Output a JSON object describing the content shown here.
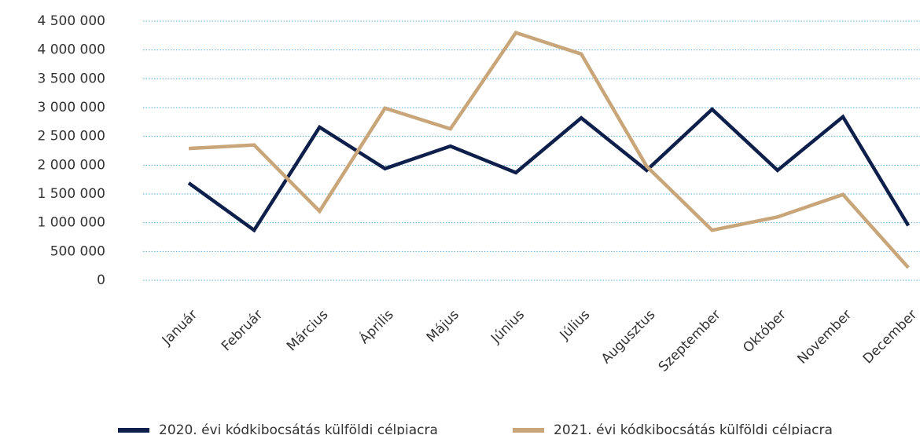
{
  "chart_data": {
    "type": "line",
    "categories": [
      "Január",
      "Február",
      "Március",
      "Április",
      "Május",
      "Június",
      "Július",
      "Augusztus",
      "Szeptember",
      "Október",
      "November",
      "December"
    ],
    "series": [
      {
        "name": "2020. évi kódkibocsátás külföldi célpiacra",
        "color": "#0d1f4a",
        "values": [
          1690000,
          870000,
          2660000,
          1940000,
          2330000,
          1870000,
          2820000,
          1910000,
          2970000,
          1910000,
          2840000,
          950000
        ]
      },
      {
        "name": "2021. évi kódkibocsátás külföldi célpiacra",
        "color": "#c9a57a",
        "values": [
          2290000,
          2350000,
          1200000,
          2990000,
          2630000,
          4300000,
          3930000,
          1980000,
          870000,
          1100000,
          1490000,
          220000
        ]
      }
    ],
    "ylim": [
      0,
      4500000
    ],
    "yticks": [
      0,
      {
        "value": 500000,
        "label": "500 000"
      },
      {
        "value": 1000000,
        "label": "1 000 000"
      },
      {
        "value": 1500000,
        "label": "1 500 000"
      },
      {
        "value": 2000000,
        "label": "2 000 000"
      },
      {
        "value": 2500000,
        "label": "2 500 000"
      },
      {
        "value": 3000000,
        "label": "3 000 000"
      },
      {
        "value": 3500000,
        "label": "3 500 000"
      },
      {
        "value": 4000000,
        "label": "4 000 000"
      },
      {
        "value": 4500000,
        "label": "4 500 000"
      }
    ],
    "grid": true,
    "legend": "bottom"
  }
}
